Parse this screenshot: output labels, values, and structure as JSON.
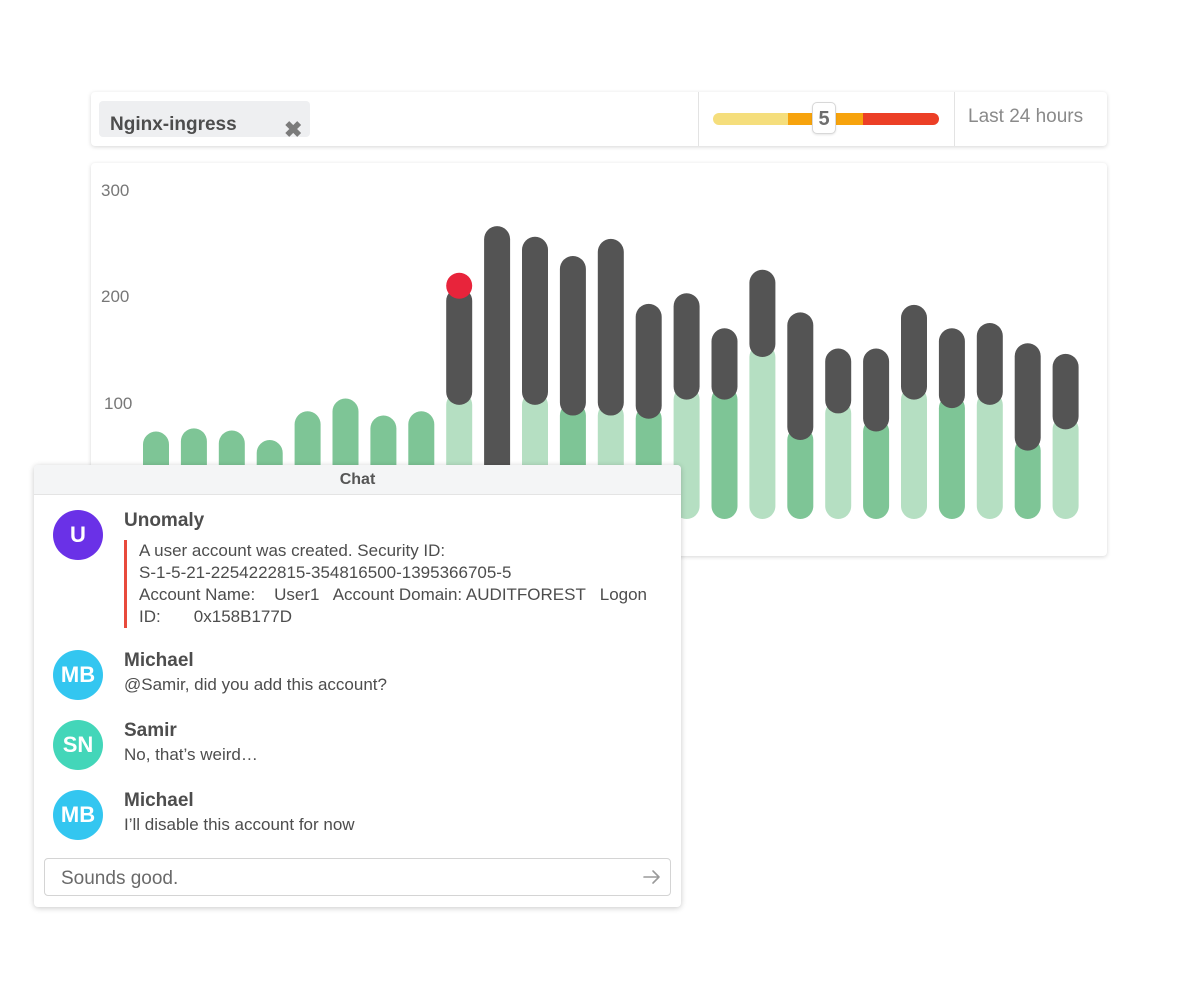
{
  "filter": {
    "tag_label": "Nginx-ingress",
    "tag_close_icon": "close-icon",
    "severity_value": "5",
    "severity_colors": [
      "#f5de7c",
      "#f7a30d",
      "#ec3f26"
    ],
    "time_range": "Last 24 hours"
  },
  "chart_data": {
    "type": "bar",
    "yticks": [
      "300",
      "200",
      "100"
    ],
    "ylim": [
      0,
      300
    ],
    "colors": {
      "normal": "#7ec596",
      "normal_light": "#b5dfc2",
      "anomaly": "#545454",
      "marker": "#e8243b"
    },
    "bars": [
      {
        "total": 70
      },
      {
        "total": 73
      },
      {
        "total": 71
      },
      {
        "total": 62
      },
      {
        "total": 89
      },
      {
        "total": 101
      },
      {
        "total": 85
      },
      {
        "total": 89
      },
      {
        "total": 205,
        "anomaly_from": 95,
        "marker": 207
      },
      {
        "total": 263,
        "anomaly_from": 0
      },
      {
        "total": 253,
        "anomaly_from": 95
      },
      {
        "total": 235,
        "anomaly_from": 85
      },
      {
        "total": 251,
        "anomaly_from": 85
      },
      {
        "total": 190,
        "anomaly_from": 82
      },
      {
        "total": 200,
        "anomaly_from": 100
      },
      {
        "total": 167,
        "anomaly_from": 100
      },
      {
        "total": 222,
        "anomaly_from": 140
      },
      {
        "total": 182,
        "anomaly_from": 62
      },
      {
        "total": 148,
        "anomaly_from": 87
      },
      {
        "total": 148,
        "anomaly_from": 70
      },
      {
        "total": 189,
        "anomaly_from": 100
      },
      {
        "total": 167,
        "anomaly_from": 92
      },
      {
        "total": 172,
        "anomaly_from": 95
      },
      {
        "total": 153,
        "anomaly_from": 52
      },
      {
        "total": 143,
        "anomaly_from": 72
      }
    ]
  },
  "chat": {
    "title": "Chat",
    "messages": [
      {
        "sender": "Unomaly",
        "initials": "U",
        "color": "#6a31e7",
        "lines": [
          "A user account was created. Security ID:",
          "S-1-5-21-2254222815-354816500-1395366705-5",
          "Account Name:    User1   Account Domain: AUDITFOREST   Logon",
          "ID:       0x158B177D"
        ]
      },
      {
        "sender": "Michael",
        "initials": "MB",
        "color": "#33c6f0",
        "text": "@Samir, did you add this account?"
      },
      {
        "sender": "Samir",
        "initials": "SN",
        "color": "#43d6b9",
        "text": "No, that’s weird…"
      },
      {
        "sender": "Michael",
        "initials": "MB",
        "color": "#33c6f0",
        "text": "I’ll disable this account for now"
      }
    ],
    "input_value": "Sounds good.",
    "send_icon": "send-arrow-icon"
  }
}
